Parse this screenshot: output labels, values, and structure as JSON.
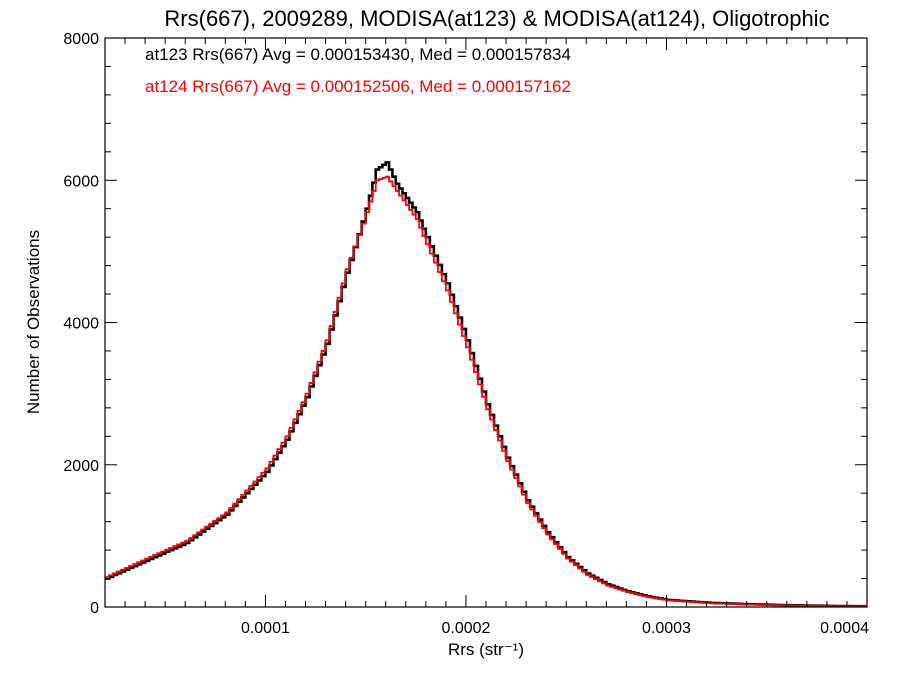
{
  "chart_data": {
    "type": "line",
    "style": "step histogram",
    "title": "Rrs(667), 2009289, MODISA(at123) & MODISA(at124), Oligotrophic",
    "xlabel": "Rrs (str⁻¹)",
    "ylabel": "Number of Observations",
    "xlim": [
      2e-05,
      0.0004
    ],
    "ylim": [
      0,
      8000
    ],
    "x_ticks": [
      {
        "value": 0.0001,
        "label": "0.0001"
      },
      {
        "value": 0.0002,
        "label": "0.0002"
      },
      {
        "value": 0.0003,
        "label": "0.0003"
      },
      {
        "value": 0.0004,
        "label": "0.0004"
      }
    ],
    "y_ticks": [
      {
        "value": 0,
        "label": "0"
      },
      {
        "value": 2000,
        "label": "2000"
      },
      {
        "value": 4000,
        "label": "4000"
      },
      {
        "value": 6000,
        "label": "6000"
      },
      {
        "value": 8000,
        "label": "8000"
      }
    ],
    "grid": false,
    "legend_position": "top-left",
    "series": [
      {
        "name": "at123",
        "color": "#000000",
        "annotation": "at123 Rrs(667) Avg = 0.000153430, Med = 0.000157834",
        "x": [
          2e-05,
          4e-05,
          6e-05,
          8e-05,
          0.0001,
          0.00011,
          0.00012,
          0.00013,
          0.00014,
          0.00015,
          0.000155,
          0.00016,
          0.000165,
          0.00017,
          0.000175,
          0.00018,
          0.00019,
          0.0002,
          0.00021,
          0.00022,
          0.00023,
          0.00024,
          0.00025,
          0.00026,
          0.00027,
          0.00028,
          0.00029,
          0.0003,
          0.00032,
          0.00034,
          0.00036,
          0.00038,
          0.0004
        ],
        "y": [
          400,
          650,
          900,
          1300,
          1900,
          2350,
          2950,
          3700,
          4700,
          5600,
          6150,
          6250,
          5950,
          5750,
          5550,
          5200,
          4550,
          3750,
          2850,
          2100,
          1500,
          1050,
          700,
          470,
          320,
          220,
          150,
          100,
          60,
          40,
          25,
          15,
          10
        ]
      },
      {
        "name": "at124",
        "color": "#ff0000",
        "annotation": "at124 Rrs(667) Avg = 0.000152506, Med = 0.000157162",
        "x": [
          2e-05,
          4e-05,
          6e-05,
          8e-05,
          0.0001,
          0.00011,
          0.00012,
          0.00013,
          0.00014,
          0.00015,
          0.000155,
          0.00016,
          0.000165,
          0.00017,
          0.000175,
          0.00018,
          0.00019,
          0.0002,
          0.00021,
          0.00022,
          0.00023,
          0.00024,
          0.00025,
          0.00026,
          0.00027,
          0.00028,
          0.00029,
          0.0003,
          0.00032,
          0.00034,
          0.00036,
          0.00038,
          0.0004
        ],
        "y": [
          420,
          680,
          930,
          1330,
          1950,
          2400,
          3000,
          3750,
          4750,
          5550,
          6000,
          6050,
          5850,
          5650,
          5450,
          5100,
          4450,
          3650,
          2780,
          2050,
          1460,
          1020,
          680,
          450,
          300,
          210,
          140,
          95,
          55,
          35,
          22,
          12,
          8
        ]
      }
    ]
  }
}
